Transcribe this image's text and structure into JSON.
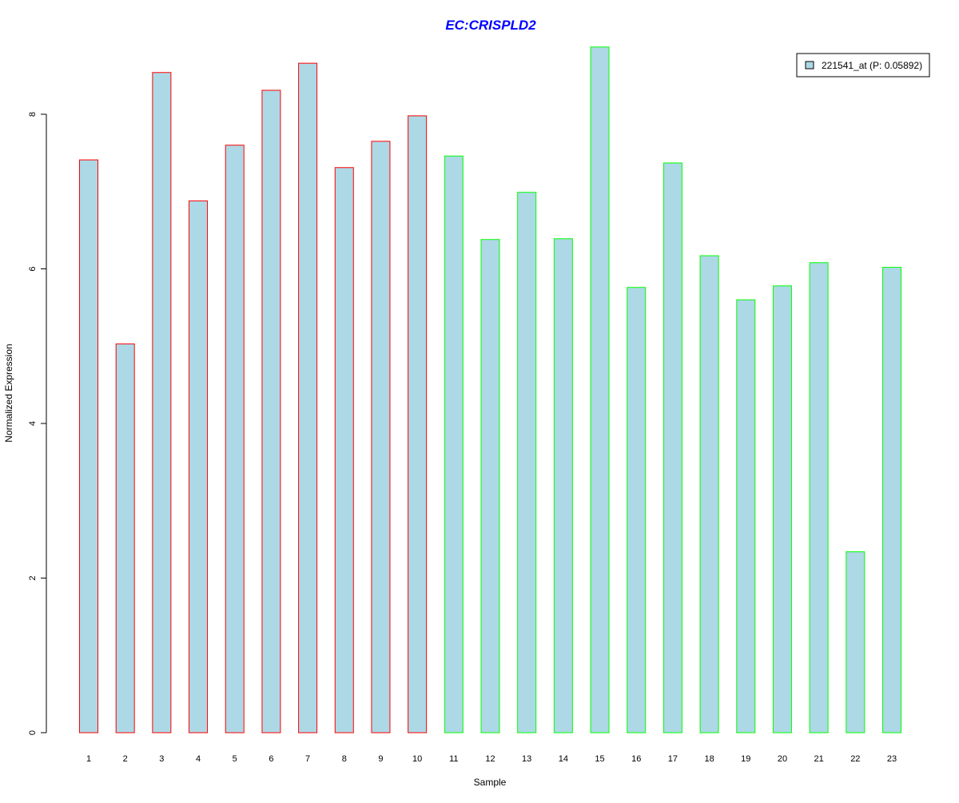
{
  "chart_data": {
    "type": "bar",
    "title": "EC:CRISPLD2",
    "xlabel": "Sample",
    "ylabel": "Normalized Expression",
    "categories": [
      "1",
      "2",
      "3",
      "4",
      "5",
      "6",
      "7",
      "8",
      "9",
      "10",
      "11",
      "12",
      "13",
      "14",
      "15",
      "16",
      "17",
      "18",
      "19",
      "20",
      "21",
      "22",
      "23"
    ],
    "series": [
      {
        "name": "221541_at (P: 0.05892)",
        "values": [
          7.41,
          5.03,
          8.54,
          6.88,
          7.6,
          8.31,
          8.66,
          7.31,
          7.65,
          7.98,
          7.46,
          6.38,
          6.99,
          6.39,
          8.87,
          5.76,
          7.37,
          6.17,
          5.6,
          5.78,
          6.08,
          2.34,
          6.02
        ]
      }
    ],
    "groups": [
      "red",
      "red",
      "red",
      "red",
      "red",
      "red",
      "red",
      "red",
      "red",
      "red",
      "green",
      "green",
      "green",
      "green",
      "green",
      "green",
      "green",
      "green",
      "green",
      "green",
      "green",
      "green",
      "green"
    ],
    "yticks": [
      0,
      2,
      4,
      6,
      8
    ],
    "ylim": [
      0,
      8.9
    ],
    "grid": false,
    "legend": {
      "position": "top-right",
      "label": "221541_at (P: 0.05892)"
    },
    "colors": {
      "fill": "#add8e6",
      "red": "#ff0000",
      "green": "#00ff00",
      "title": "#0000ff"
    }
  }
}
